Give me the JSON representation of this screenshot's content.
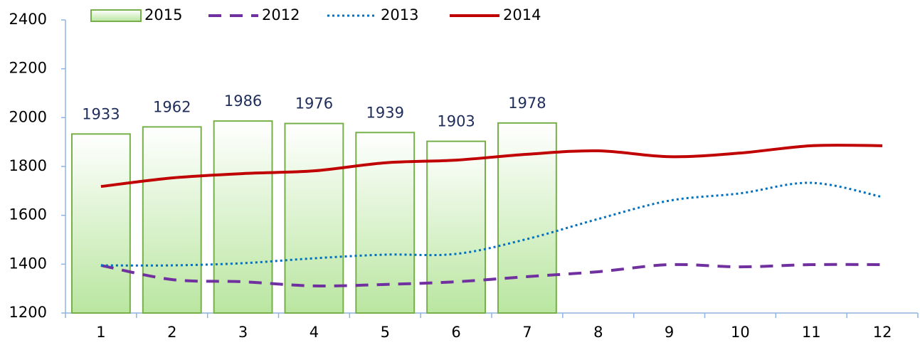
{
  "chart_data": {
    "type": "bar-line",
    "categories": [
      "1",
      "2",
      "3",
      "4",
      "5",
      "6",
      "7",
      "8",
      "9",
      "10",
      "11",
      "12"
    ],
    "series": [
      {
        "name": "2015",
        "type": "bar",
        "color": "#77b04a",
        "values": [
          1933,
          1962,
          1986,
          1976,
          1939,
          1903,
          1978,
          null,
          null,
          null,
          null,
          null
        ]
      },
      {
        "name": "2012",
        "type": "line",
        "dash": "dashed",
        "color": "#7030a0",
        "values": [
          1395,
          1337,
          1328,
          1311,
          1317,
          1328,
          1349,
          1369,
          1398,
          1389,
          1398,
          1398
        ]
      },
      {
        "name": "2013",
        "type": "line",
        "dash": "dotted",
        "color": "#0070c0",
        "values": [
          1395,
          1395,
          1404,
          1424,
          1439,
          1442,
          1503,
          1585,
          1660,
          1690,
          1733,
          1675
        ]
      },
      {
        "name": "2014",
        "type": "line",
        "dash": "solid",
        "color": "#c00000",
        "values": [
          1718,
          1753,
          1771,
          1782,
          1815,
          1826,
          1850,
          1864,
          1840,
          1855,
          1885,
          1885
        ]
      }
    ],
    "ylim": [
      1200,
      2400
    ],
    "yticks": [
      1200,
      1400,
      1600,
      1800,
      2000,
      2200,
      2400
    ],
    "grid": false,
    "legend": "top"
  }
}
